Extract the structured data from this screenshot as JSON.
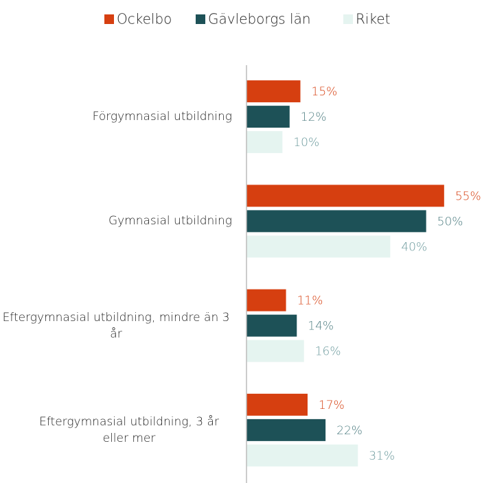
{
  "chart_data": {
    "type": "hbar",
    "categories": [
      "Förgymnasial utbildning",
      "Gymnasial utbildning",
      "Eftergymnasial utbildning, mindre än 3 år",
      "Eftergymnasial utbildning, 3 år eller mer"
    ],
    "series": [
      {
        "name": "Ockelbo",
        "color": "#d63f10",
        "label_color": "#d63f10",
        "values": [
          15,
          55,
          11,
          17
        ],
        "value_labels": [
          "15%",
          "55%",
          "11%",
          "17%"
        ]
      },
      {
        "name": "Gävleborgs län",
        "color": "#1d5157",
        "label_color": "#4f7e82",
        "values": [
          12,
          50,
          14,
          22
        ],
        "value_labels": [
          "12%",
          "50%",
          "14%",
          "22%"
        ]
      },
      {
        "name": "Riket",
        "color": "#e5f4f0",
        "label_color": "#6c9a9d",
        "values": [
          10,
          40,
          16,
          31
        ],
        "value_labels": [
          "10%",
          "40%",
          "16%",
          "31%"
        ]
      }
    ],
    "xlim": [
      0,
      60
    ],
    "legend": "top"
  }
}
